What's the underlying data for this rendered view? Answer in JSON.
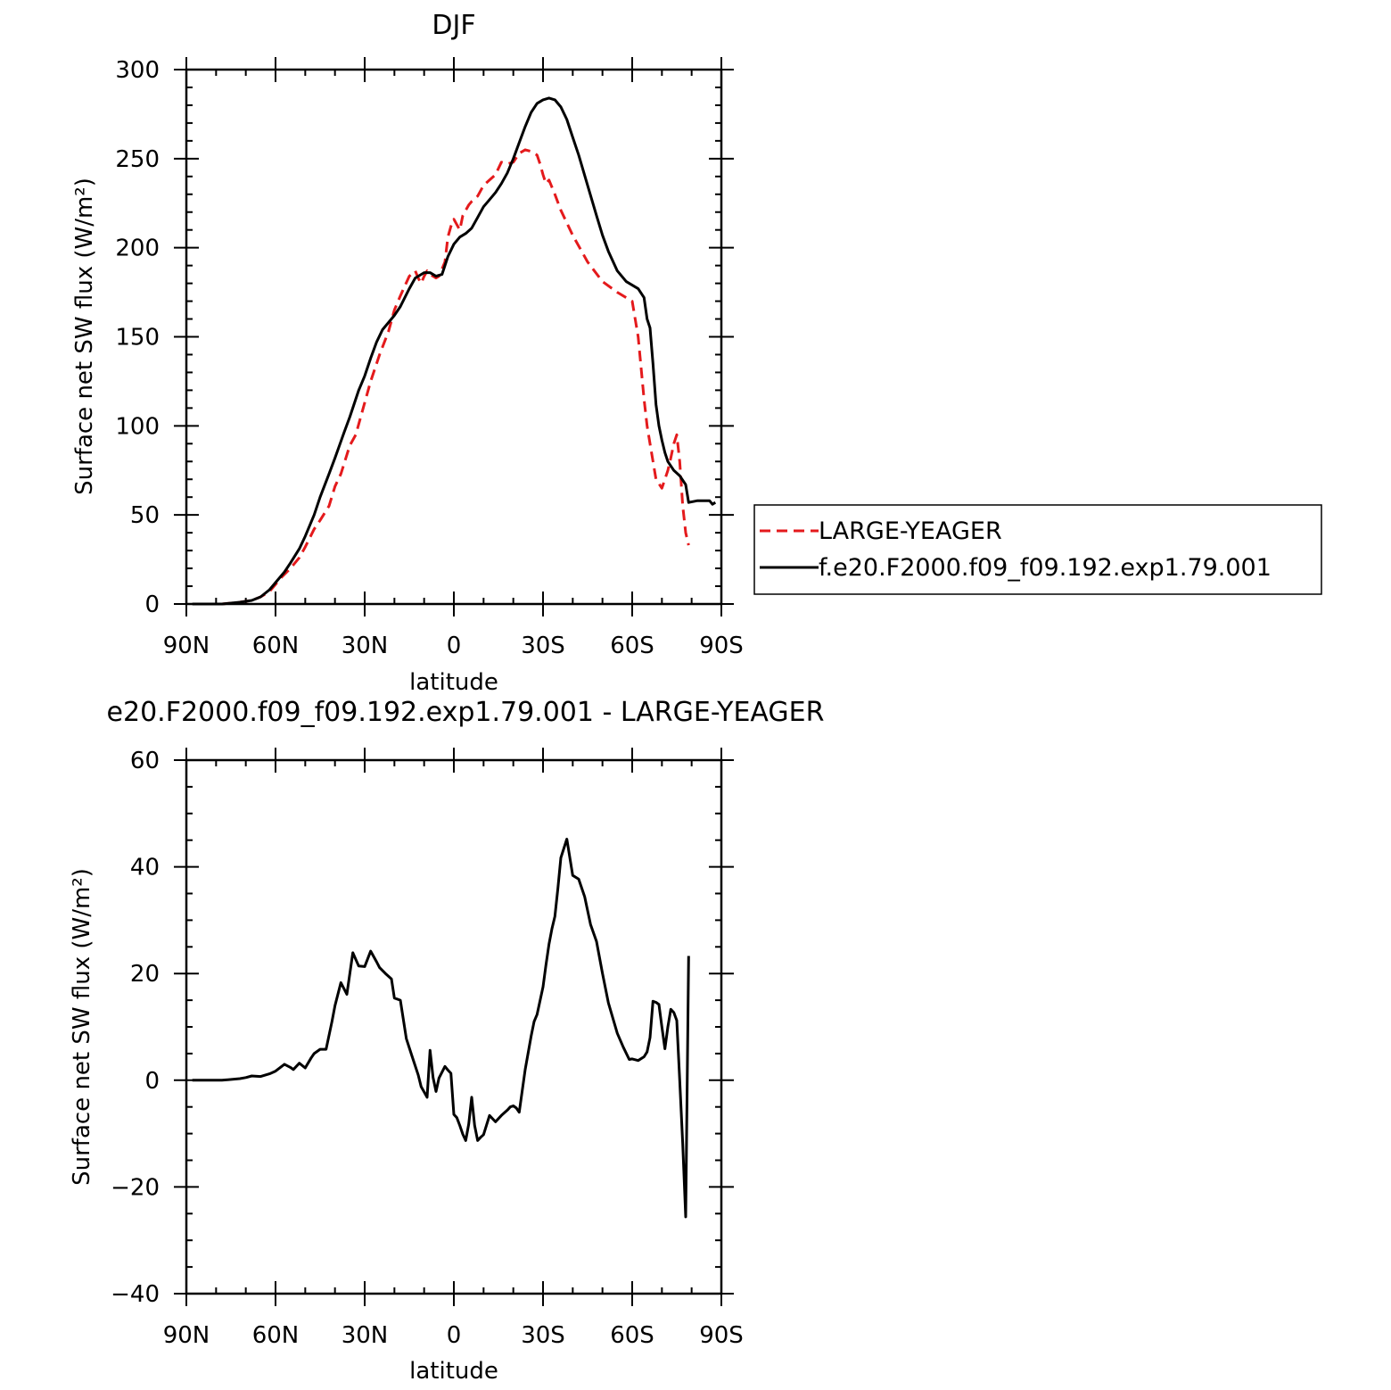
{
  "colors": {
    "large_yeager": "#e41a1c",
    "model": "#000000",
    "frame": "#000000"
  },
  "chart_data": [
    {
      "type": "line",
      "title": "DJF",
      "xlabel": "latitude",
      "ylabel": "Surface net SW flux (W/m²)",
      "xlim": [
        90,
        -90
      ],
      "ylim": [
        0,
        300
      ],
      "xticks": [
        90,
        60,
        30,
        0,
        -30,
        -60,
        -90
      ],
      "xticklabels": [
        "90N",
        "60N",
        "30N",
        "0",
        "30S",
        "60S",
        "90S"
      ],
      "yticks": [
        0,
        50,
        100,
        150,
        200,
        250,
        300
      ],
      "yticklabels": [
        "0",
        "50",
        "100",
        "150",
        "200",
        "250",
        "300"
      ],
      "legend": "right",
      "grid": false,
      "series": [
        {
          "name": "LARGE-YEAGER",
          "style": "dashed",
          "color": "#e41a1c",
          "x": [
            78,
            72,
            68,
            65,
            62,
            60,
            58,
            55,
            52,
            50,
            47,
            45,
            42,
            40,
            38,
            35,
            33,
            30,
            28,
            25,
            22,
            20,
            18,
            15,
            13,
            12,
            11,
            10,
            9,
            8,
            7,
            6,
            5,
            3,
            2,
            1,
            0,
            -1,
            -2,
            -3,
            -4,
            -5,
            -6,
            -8,
            -10,
            -12,
            -14,
            -16,
            -18,
            -20,
            -22,
            -24,
            -26,
            -28,
            -29,
            -30,
            -31,
            -32,
            -34,
            -36,
            -40,
            -45,
            -50,
            -55,
            -60,
            -62,
            -64,
            -65,
            -66,
            -68,
            -70,
            -71,
            -72,
            -73,
            -74,
            -75,
            -76,
            -77,
            -78,
            -79
          ],
          "y": [
            0,
            1,
            2,
            4,
            7,
            11,
            15,
            20,
            26,
            32,
            42,
            47,
            55,
            66,
            73,
            89,
            95,
            113,
            125,
            140,
            153,
            165,
            173,
            184,
            187,
            183,
            180,
            184,
            187,
            185,
            184,
            183,
            184,
            192,
            206,
            212,
            216,
            213,
            210,
            218,
            221,
            224,
            226,
            229,
            235,
            238,
            241,
            248,
            247,
            248,
            253,
            255,
            254,
            252,
            247,
            241,
            236,
            238,
            230,
            221,
            207,
            192,
            181,
            175,
            170,
            150,
            115,
            100,
            90,
            70,
            65,
            70,
            75,
            82,
            90,
            95,
            80,
            55,
            40,
            33
          ]
        },
        {
          "name": "f.e20.F2000.f09_f09.192.exp1.79.001",
          "style": "solid",
          "color": "#000000",
          "x": [
            88,
            78,
            72,
            68,
            65,
            62,
            60,
            57,
            55,
            52,
            50,
            47,
            45,
            42,
            40,
            37,
            35,
            32,
            30,
            28,
            26,
            24,
            22,
            20,
            18,
            15,
            13,
            10,
            8,
            6,
            4,
            3,
            2,
            0,
            -2,
            -4,
            -6,
            -8,
            -10,
            -12,
            -14,
            -16,
            -18,
            -20,
            -22,
            -24,
            -26,
            -28,
            -30,
            -32,
            -34,
            -36,
            -38,
            -40,
            -42,
            -45,
            -48,
            -50,
            -52,
            -55,
            -58,
            -60,
            -62,
            -64,
            -65,
            -66,
            -67,
            -68,
            -69,
            -70,
            -71,
            -72,
            -74,
            -76,
            -78,
            -79,
            -82,
            -85,
            -86,
            -87,
            -88
          ],
          "y": [
            0,
            0,
            1,
            2,
            4,
            8,
            12,
            18,
            23,
            31,
            38,
            50,
            60,
            73,
            82,
            96,
            105,
            120,
            128,
            138,
            147,
            154,
            158,
            162,
            167,
            177,
            183,
            186,
            186,
            184,
            185,
            190,
            195,
            202,
            206,
            208,
            211,
            217,
            223,
            227,
            231,
            236,
            242,
            250,
            259,
            268,
            276,
            281,
            283,
            284,
            283,
            279,
            272,
            262,
            252,
            235,
            218,
            207,
            198,
            187,
            181,
            179,
            177,
            172,
            160,
            155,
            135,
            112,
            100,
            92,
            85,
            80,
            75,
            72,
            67,
            57,
            58,
            58,
            58,
            56,
            57
          ]
        }
      ]
    },
    {
      "type": "line",
      "title": "e20.F2000.f09_f09.192.exp1.79.001 - LARGE-YEAGER",
      "xlabel": "latitude",
      "ylabel": "Surface net SW flux (W/m²)",
      "xlim": [
        90,
        -90
      ],
      "ylim": [
        -40,
        60
      ],
      "xticks": [
        90,
        60,
        30,
        0,
        -30,
        -60,
        -90
      ],
      "xticklabels": [
        "90N",
        "60N",
        "30N",
        "0",
        "30S",
        "60S",
        "90S"
      ],
      "yticks": [
        -40,
        -20,
        0,
        20,
        40,
        60
      ],
      "yticklabels": [
        "−40",
        "−20",
        "0",
        "20",
        "40",
        "60"
      ],
      "grid": false,
      "series": [
        {
          "style": "solid",
          "color": "#000000",
          "x": [
            88,
            78,
            72,
            70,
            68,
            65,
            62,
            60,
            57,
            55,
            54,
            52,
            50,
            48,
            47,
            45,
            43,
            41,
            40,
            38,
            36,
            34,
            32,
            30,
            28,
            26,
            25,
            23,
            21,
            20,
            18,
            16,
            14,
            12,
            11,
            10,
            9,
            8,
            7,
            6,
            5,
            3,
            2,
            1,
            0,
            -1,
            -2,
            -3,
            -4,
            -5,
            -6,
            -7,
            -8,
            -9,
            -10,
            -12,
            -14,
            -16,
            -18,
            -19,
            -20,
            -21,
            -22,
            -24,
            -26,
            -27,
            -28,
            -30,
            -31,
            -32,
            -33,
            -34,
            -35,
            -36,
            -38,
            -40,
            -42,
            -44,
            -46,
            -48,
            -50,
            -52,
            -55,
            -57,
            -59,
            -60,
            -62,
            -64,
            -65,
            -66,
            -67,
            -68,
            -69,
            -70,
            -71,
            -72,
            -73,
            -74,
            -75,
            -76,
            -77,
            -78,
            -79
          ],
          "y": [
            0,
            0,
            0.3,
            0.5,
            0.8,
            0.7,
            1.2,
            1.7,
            3,
            2.4,
            2,
            3.2,
            2.3,
            4.2,
            5,
            5.8,
            5.8,
            11,
            14,
            18.3,
            16.1,
            23.9,
            21.4,
            21.3,
            24.2,
            22.2,
            21.1,
            20,
            19,
            15.4,
            15,
            7.8,
            4.4,
            1,
            -1.2,
            -2.2,
            -3.2,
            5.6,
            0.5,
            -2.1,
            0.4,
            2.6,
            1.9,
            1.3,
            -6.4,
            -7,
            -8.5,
            -10.1,
            -11.3,
            -8.2,
            -3.2,
            -8.5,
            -11.3,
            -10.7,
            -10.2,
            -6.6,
            -7.8,
            -6.6,
            -5.6,
            -5,
            -4.8,
            -5.2,
            -6,
            2,
            8.3,
            11,
            12.3,
            17.5,
            21.6,
            25.5,
            28.4,
            30.7,
            36,
            41.7,
            45.2,
            38.4,
            37.7,
            34.4,
            29.2,
            26,
            20,
            14.5,
            8.8,
            6.2,
            3.9,
            4,
            3.7,
            4.4,
            5.3,
            8,
            14.8,
            14.6,
            14.2,
            10,
            5.9,
            10,
            13.3,
            12.7,
            11.2,
            0,
            -12,
            -25.6,
            23.3
          ]
        }
      ]
    }
  ]
}
